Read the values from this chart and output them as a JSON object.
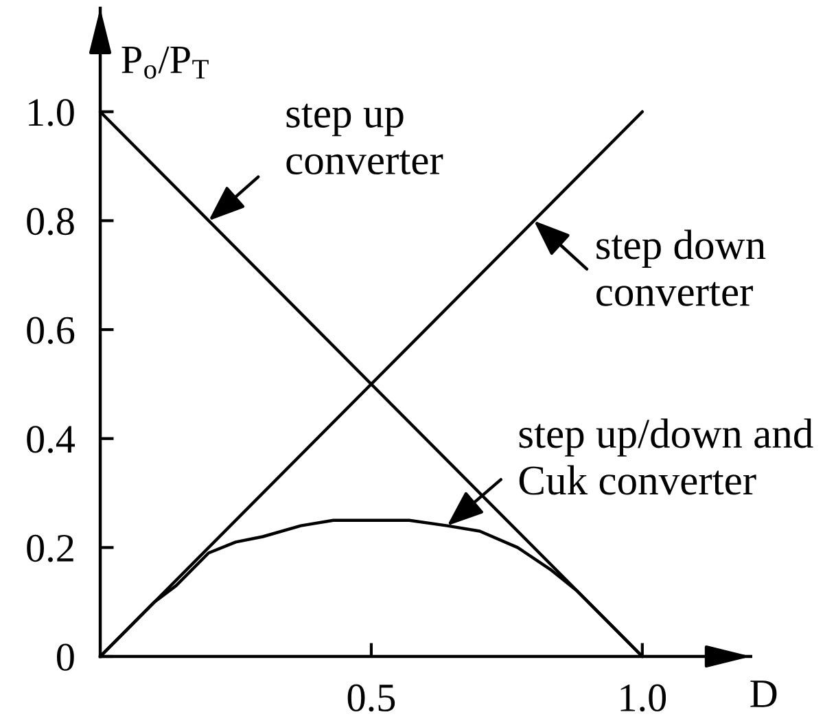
{
  "chart_data": {
    "type": "line",
    "xlabel": "D",
    "ylabel": "P$_{o}$/P$_{T}$",
    "series": [
      {
        "x": [
          0,
          1
        ],
        "values": [
          1,
          0
        ],
        "color": "#000000"
      },
      {
        "x": [
          0,
          1
        ],
        "values": [
          0,
          1
        ],
        "color": "#000000"
      },
      {
        "x": [
          0,
          0.05,
          0.1,
          0.14,
          0.2,
          0.25,
          0.3,
          0.37,
          0.43,
          0.5,
          0.57,
          0.64,
          0.7,
          0.77,
          0.83,
          0.88,
          0.94,
          1.0
        ],
        "values": [
          0,
          0.05,
          0.1,
          0.13,
          0.19,
          0.21,
          0.22,
          0.24,
          0.25,
          0.25,
          0.25,
          0.24,
          0.23,
          0.2,
          0.16,
          0.12,
          0.06,
          0
        ],
        "color": "#000000"
      }
    ],
    "xlim": [
      0,
      1.2
    ],
    "ylim": [
      0,
      1.19
    ],
    "xticks": [
      0.5,
      {
        "value": 1,
        "label": "1.0"
      }
    ],
    "yticks": [
      0,
      0.2,
      0.4,
      0.6,
      0.8,
      {
        "value": 1,
        "label": "1.0"
      }
    ],
    "line_style": "solid",
    "annotations": [
      {
        "text": "step up\nconverter",
        "x": 0.2,
        "y": 0.8
      },
      {
        "text": "step down\nconverter",
        "x": 0.8,
        "y": 0.8
      },
      {
        "text": "step up/down and\nCuk converter",
        "x": 0.64,
        "y": 0.24
      }
    ]
  }
}
